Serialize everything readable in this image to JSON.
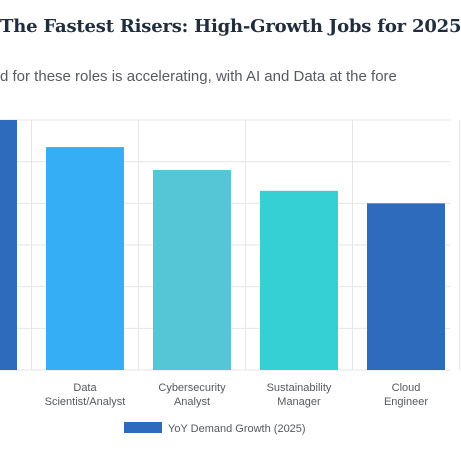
{
  "title": "The Fastest Risers: High-Growth Jobs for 2025",
  "subtitle": "d for these roles is accelerating, with AI and Data at the fore",
  "chart_data": {
    "type": "bar",
    "title": "The Fastest Risers: High-Growth Jobs for 2025",
    "subtitle": "d for these roles is accelerating, with AI and Data at the fore",
    "categories": [
      "",
      "Data Scientist/Analyst",
      "Cybersecurity Analyst",
      "Sustainability Manager",
      "Cloud Engineer"
    ],
    "category_lines": [
      [],
      [
        "Data",
        "Scientist/Analyst"
      ],
      [
        "Cybersecurity",
        "Analyst"
      ],
      [
        "Sustainability",
        "Manager"
      ],
      [
        "Cloud",
        "Engineer"
      ]
    ],
    "series": [
      {
        "name": "YoY Demand Growth (2025)",
        "values": [
          120,
          107,
          96,
          86,
          80
        ]
      }
    ],
    "bar_colors": [
      "#2e6bbd",
      "#35aef5",
      "#55c6d5",
      "#34d0d4",
      "#2e6bbd"
    ],
    "legend_color": "#2e6bbd",
    "grid_color": "#e6e6e6",
    "ylim": [
      0,
      120
    ],
    "grid": true,
    "legend_position": "bottom",
    "xlabel": "",
    "ylabel": ""
  }
}
